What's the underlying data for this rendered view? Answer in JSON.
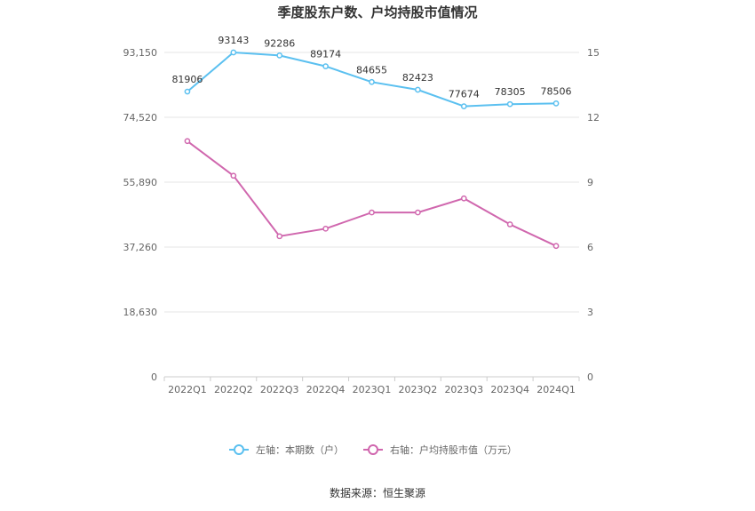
{
  "chart_data": {
    "type": "line",
    "title": "季度股东户数、户均持股市值情况",
    "categories": [
      "2022Q1",
      "2022Q2",
      "2022Q3",
      "2022Q4",
      "2023Q1",
      "2023Q2",
      "2023Q3",
      "2023Q4",
      "2024Q1"
    ],
    "left_axis": {
      "ticks": [
        "0",
        "18,630",
        "37,260",
        "55,890",
        "74,520",
        "93,150"
      ],
      "range": [
        0,
        93150
      ]
    },
    "right_axis": {
      "ticks": [
        "0",
        "3",
        "6",
        "9",
        "12",
        "15"
      ],
      "range": [
        0,
        15
      ]
    },
    "series": [
      {
        "name": "左轴：本期数（户）",
        "axis": "left",
        "color": "#5bc0f0",
        "values": [
          81906,
          93143,
          92286,
          89174,
          84655,
          82423,
          77674,
          78305,
          78506
        ],
        "labels": [
          "81906",
          "93143",
          "92286",
          "89174",
          "84655",
          "82423",
          "77674",
          "78305",
          "78506"
        ]
      },
      {
        "name": "右轴：户均持股市值（万元）",
        "axis": "right",
        "color": "#d067ae",
        "values": [
          10.9,
          9.3,
          6.5,
          6.85,
          7.6,
          7.6,
          8.25,
          7.05,
          6.05
        ]
      }
    ],
    "legend_position": "bottom",
    "grid": true
  },
  "source": "数据来源：恒生聚源"
}
